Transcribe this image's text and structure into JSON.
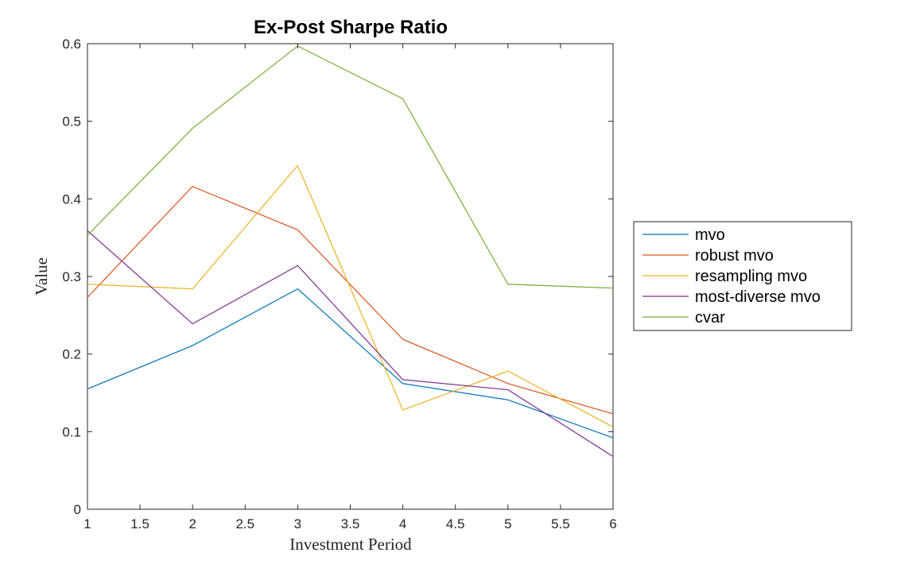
{
  "chart_data": {
    "type": "line",
    "title": "Ex-Post Sharpe Ratio",
    "xlabel": "Investment Period",
    "ylabel": "Value",
    "x": [
      1,
      2,
      3,
      4,
      5,
      6
    ],
    "xlim": [
      1,
      6
    ],
    "ylim": [
      0,
      0.6
    ],
    "xticks": [
      "1",
      "1.5",
      "2",
      "2.5",
      "3",
      "3.5",
      "4",
      "4.5",
      "5",
      "5.5",
      "6"
    ],
    "yticks": [
      "0",
      "0.1",
      "0.2",
      "0.3",
      "0.4",
      "0.5",
      "0.6"
    ],
    "grid": false,
    "legend_position": "outside-right",
    "series": [
      {
        "name": "mvo",
        "color": "#0072BD",
        "values": [
          0.155,
          0.211,
          0.284,
          0.162,
          0.141,
          0.092
        ]
      },
      {
        "name": "robust mvo",
        "color": "#D95319",
        "values": [
          0.273,
          0.416,
          0.36,
          0.219,
          0.162,
          0.123
        ]
      },
      {
        "name": "resampling mvo",
        "color": "#EDB120",
        "values": [
          0.29,
          0.284,
          0.443,
          0.128,
          0.178,
          0.106
        ]
      },
      {
        "name": "most-diverse mvo",
        "color": "#7E2F8E",
        "values": [
          0.359,
          0.239,
          0.314,
          0.167,
          0.154,
          0.068
        ]
      },
      {
        "name": "cvar",
        "color": "#77AC30",
        "values": [
          0.353,
          0.491,
          0.597,
          0.529,
          0.29,
          0.285
        ]
      }
    ]
  }
}
